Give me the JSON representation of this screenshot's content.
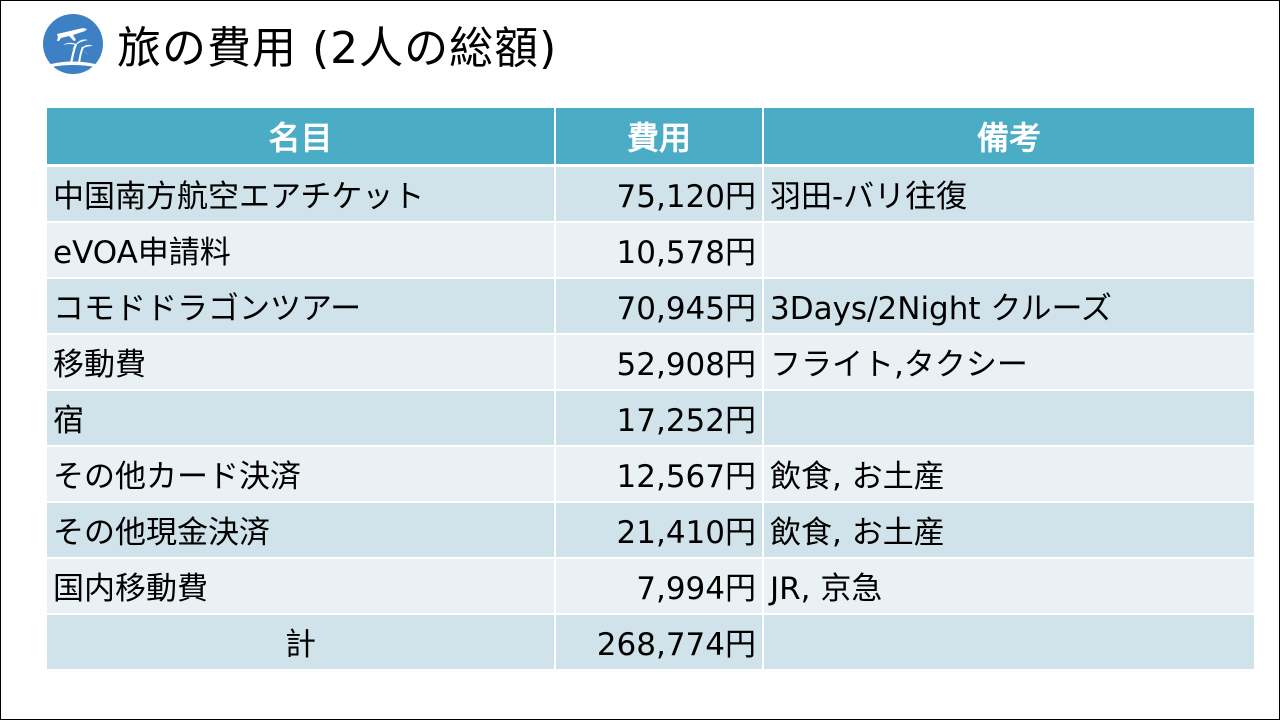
{
  "header": {
    "title": "旅の費用 (2人の総額)",
    "logo_icon": "palm-tree-airplane-icon"
  },
  "colors": {
    "header_bg": "#4bacc6",
    "row_dark": "#d0e3ea",
    "row_light": "#e9f1f5",
    "logo_bg": "#3d80c4"
  },
  "table": {
    "columns": [
      "名目",
      "費用",
      "備考"
    ],
    "rows": [
      {
        "name": "中国南方航空エアチケット",
        "cost": "75,120円",
        "note": "羽田-バリ往復"
      },
      {
        "name": "eVOA申請料",
        "cost": "10,578円",
        "note": ""
      },
      {
        "name": "コモドドラゴンツアー",
        "cost": "70,945円",
        "note": "3Days/2Night クルーズ"
      },
      {
        "name": "移動費",
        "cost": "52,908円",
        "note": "フライト,タクシー"
      },
      {
        "name": "宿",
        "cost": "17,252円",
        "note": ""
      },
      {
        "name": "その他カード決済",
        "cost": "12,567円",
        "note": "飲食, お土産"
      },
      {
        "name": "その他現金決済",
        "cost": "21,410円",
        "note": "飲食, お土産"
      },
      {
        "name": "国内移動費",
        "cost": "7,994円",
        "note": "JR, 京急"
      }
    ],
    "total": {
      "label": "計",
      "cost": "268,774円",
      "note": ""
    }
  }
}
